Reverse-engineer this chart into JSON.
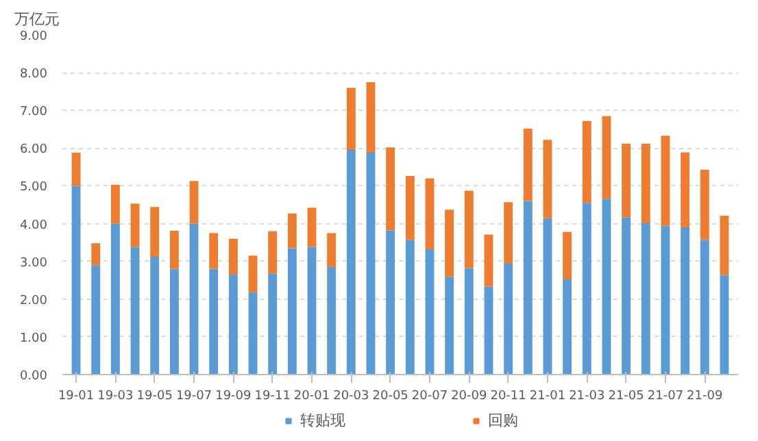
{
  "chart_data": {
    "type": "bar",
    "stacked": true,
    "ylabel": "万亿元",
    "categories": [
      "19-01",
      null,
      "19-03",
      null,
      "19-05",
      null,
      "19-07",
      null,
      "19-09",
      null,
      "19-11",
      null,
      "20-01",
      null,
      "20-03",
      null,
      "20-05",
      null,
      "20-07",
      null,
      "20-09",
      null,
      "20-11",
      null,
      "21-01",
      null,
      "21-03",
      null,
      "21-05",
      null,
      "21-07",
      null,
      "21-09",
      null
    ],
    "series": [
      {
        "name": "转贴现",
        "color": "#5b9bd5",
        "values": [
          5.0,
          2.9,
          4.0,
          3.38,
          3.12,
          2.8,
          4.0,
          2.8,
          2.65,
          2.18,
          2.68,
          3.35,
          3.38,
          2.85,
          5.95,
          5.88,
          3.82,
          3.57,
          3.32,
          2.59,
          2.82,
          2.33,
          2.94,
          4.6,
          4.14,
          2.52,
          4.55,
          4.66,
          4.17,
          4.01,
          3.94,
          3.9,
          3.57,
          2.64
        ]
      },
      {
        "name": "回购",
        "color": "#ed7d31",
        "values": [
          0.88,
          0.58,
          1.03,
          1.15,
          1.32,
          1.01,
          1.13,
          0.95,
          0.95,
          0.97,
          1.12,
          0.92,
          1.04,
          0.9,
          1.65,
          1.87,
          2.2,
          1.69,
          1.88,
          1.78,
          2.05,
          1.38,
          1.63,
          1.92,
          2.08,
          1.26,
          2.17,
          2.19,
          1.95,
          2.11,
          2.39,
          1.99,
          1.86,
          1.57
        ]
      }
    ],
    "ylim": [
      0,
      9
    ],
    "yticks": [
      {
        "value": 0,
        "label": "0.00"
      },
      {
        "value": 1,
        "label": "1.00"
      },
      {
        "value": 2,
        "label": "2.00"
      },
      {
        "value": 3,
        "label": "3.00"
      },
      {
        "value": 4,
        "label": "4.00"
      },
      {
        "value": 5,
        "label": "5.00"
      },
      {
        "value": 6,
        "label": "6.00"
      },
      {
        "value": 7,
        "label": "7.00"
      },
      {
        "value": 8,
        "label": "8.00"
      },
      {
        "value": 9,
        "label": "9.00"
      }
    ],
    "grid": "y",
    "legend": "bottom"
  }
}
